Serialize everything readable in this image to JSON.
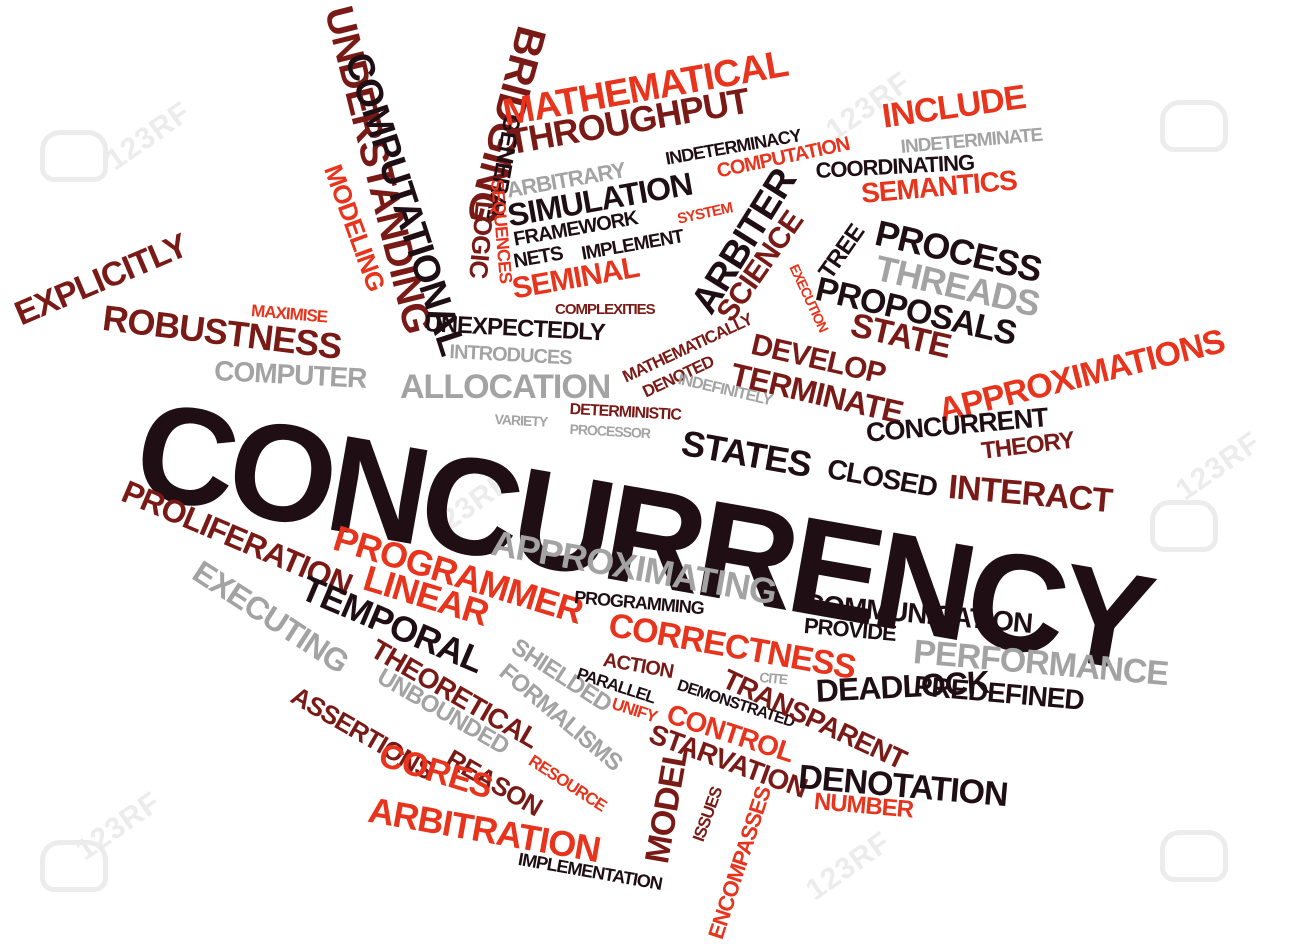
{
  "watermark": {
    "text": "123RF"
  },
  "words": {
    "concurrency": "CONCURRENCY",
    "mathematical": "MATHEMATICAL",
    "throughput": "THROUGHPUT",
    "include": "INCLUDE",
    "indeterminacy": "INDETERMINACY",
    "indeterminate": "INDETERMINATE",
    "arbitrary": "ARBITRARY",
    "computation": "COMPUTATION",
    "simulation": "SIMULATION",
    "coordinating": "COORDINATING",
    "semantics": "SEMANTICS",
    "framework": "FRAMEWORK",
    "system": "SYSTEM",
    "nets": "NETS",
    "implement": "IMPLEMENT",
    "seminal": "SEMINAL",
    "arbiter": "ARBITER",
    "science": "SCIENCE",
    "tree": "TREE",
    "process": "PROCESS",
    "threads": "THREADS",
    "proposals": "PROPOSALS",
    "state": "STATE",
    "execution": "EXECUTION",
    "understanding": "UNDERSTANDING",
    "computational": "COMPUTATIONAL",
    "bridging": "BRIDGING",
    "general": "GENERAL",
    "sequences": "SEQUENCES",
    "logic": "LOGIC",
    "modeling": "MODELING",
    "explicitly": "EXPLICITLY",
    "robustness": "ROBUSTNESS",
    "maximise": "MAXIMISE",
    "complexities": "COMPLEXITIES",
    "unexpectedly": "UNEXPECTEDLY",
    "introduces": "INTRODUCES",
    "mathematically": "MATHEMATICALLY",
    "denoted": "DENOTED",
    "develop": "DEVELOP",
    "terminate": "TERMINATE",
    "approximations": "APPROXIMATIONS",
    "computer": "COMPUTER",
    "allocation": "ALLOCATION",
    "indefinitely": "INDEFINITELY",
    "deterministic": "DETERMINISTIC",
    "variety": "VARIETY",
    "processor": "PROCESSOR",
    "concurrent": "CONCURRENT",
    "theory": "THEORY",
    "states": "STATES",
    "closed": "CLOSED",
    "interact": "INTERACT",
    "proliferation": "PROLIFERATION",
    "programmer": "PROGRAMMER",
    "approximating": "APPROXIMATING",
    "linear": "LINEAR",
    "executing": "EXECUTING",
    "temporal": "TEMPORAL",
    "programming": "PROGRAMMING",
    "communication": "COMMUNICATION",
    "provide": "PROVIDE",
    "correctness": "CORRECTNESS",
    "performance": "PERFORMANCE",
    "action": "ACTION",
    "theoretical": "THEORETICAL",
    "shielded": "SHIELDED",
    "formalisms": "FORMALISMS",
    "parallel": "PARALLEL",
    "cite": "CITE",
    "demonstrated": "DEMONSTRATED",
    "transparent": "TRANSPARENT",
    "deadlock": "DEADLOCK",
    "predefined": "PREDEFINED",
    "unbounded": "UNBOUNDED",
    "unify": "UNIFY",
    "control": "CONTROL",
    "assertions": "ASSERTIONS",
    "reason": "REASON",
    "starvation": "STARVATION",
    "cores": "CORES",
    "resource": "RESOURCE",
    "denotation": "DENOTATION",
    "issues": "ISSUES",
    "number": "NUMBER",
    "model": "MODEL",
    "encompasses": "ENCOMPASSES",
    "arbitration": "ARBITRATION",
    "implementation": "IMPLEMENTATION"
  },
  "colors": {
    "dark": "#1f0f14",
    "red": "#e8341c",
    "maroon": "#7a1a16",
    "gray": "#a3a3a3",
    "background": "#ffffff"
  }
}
